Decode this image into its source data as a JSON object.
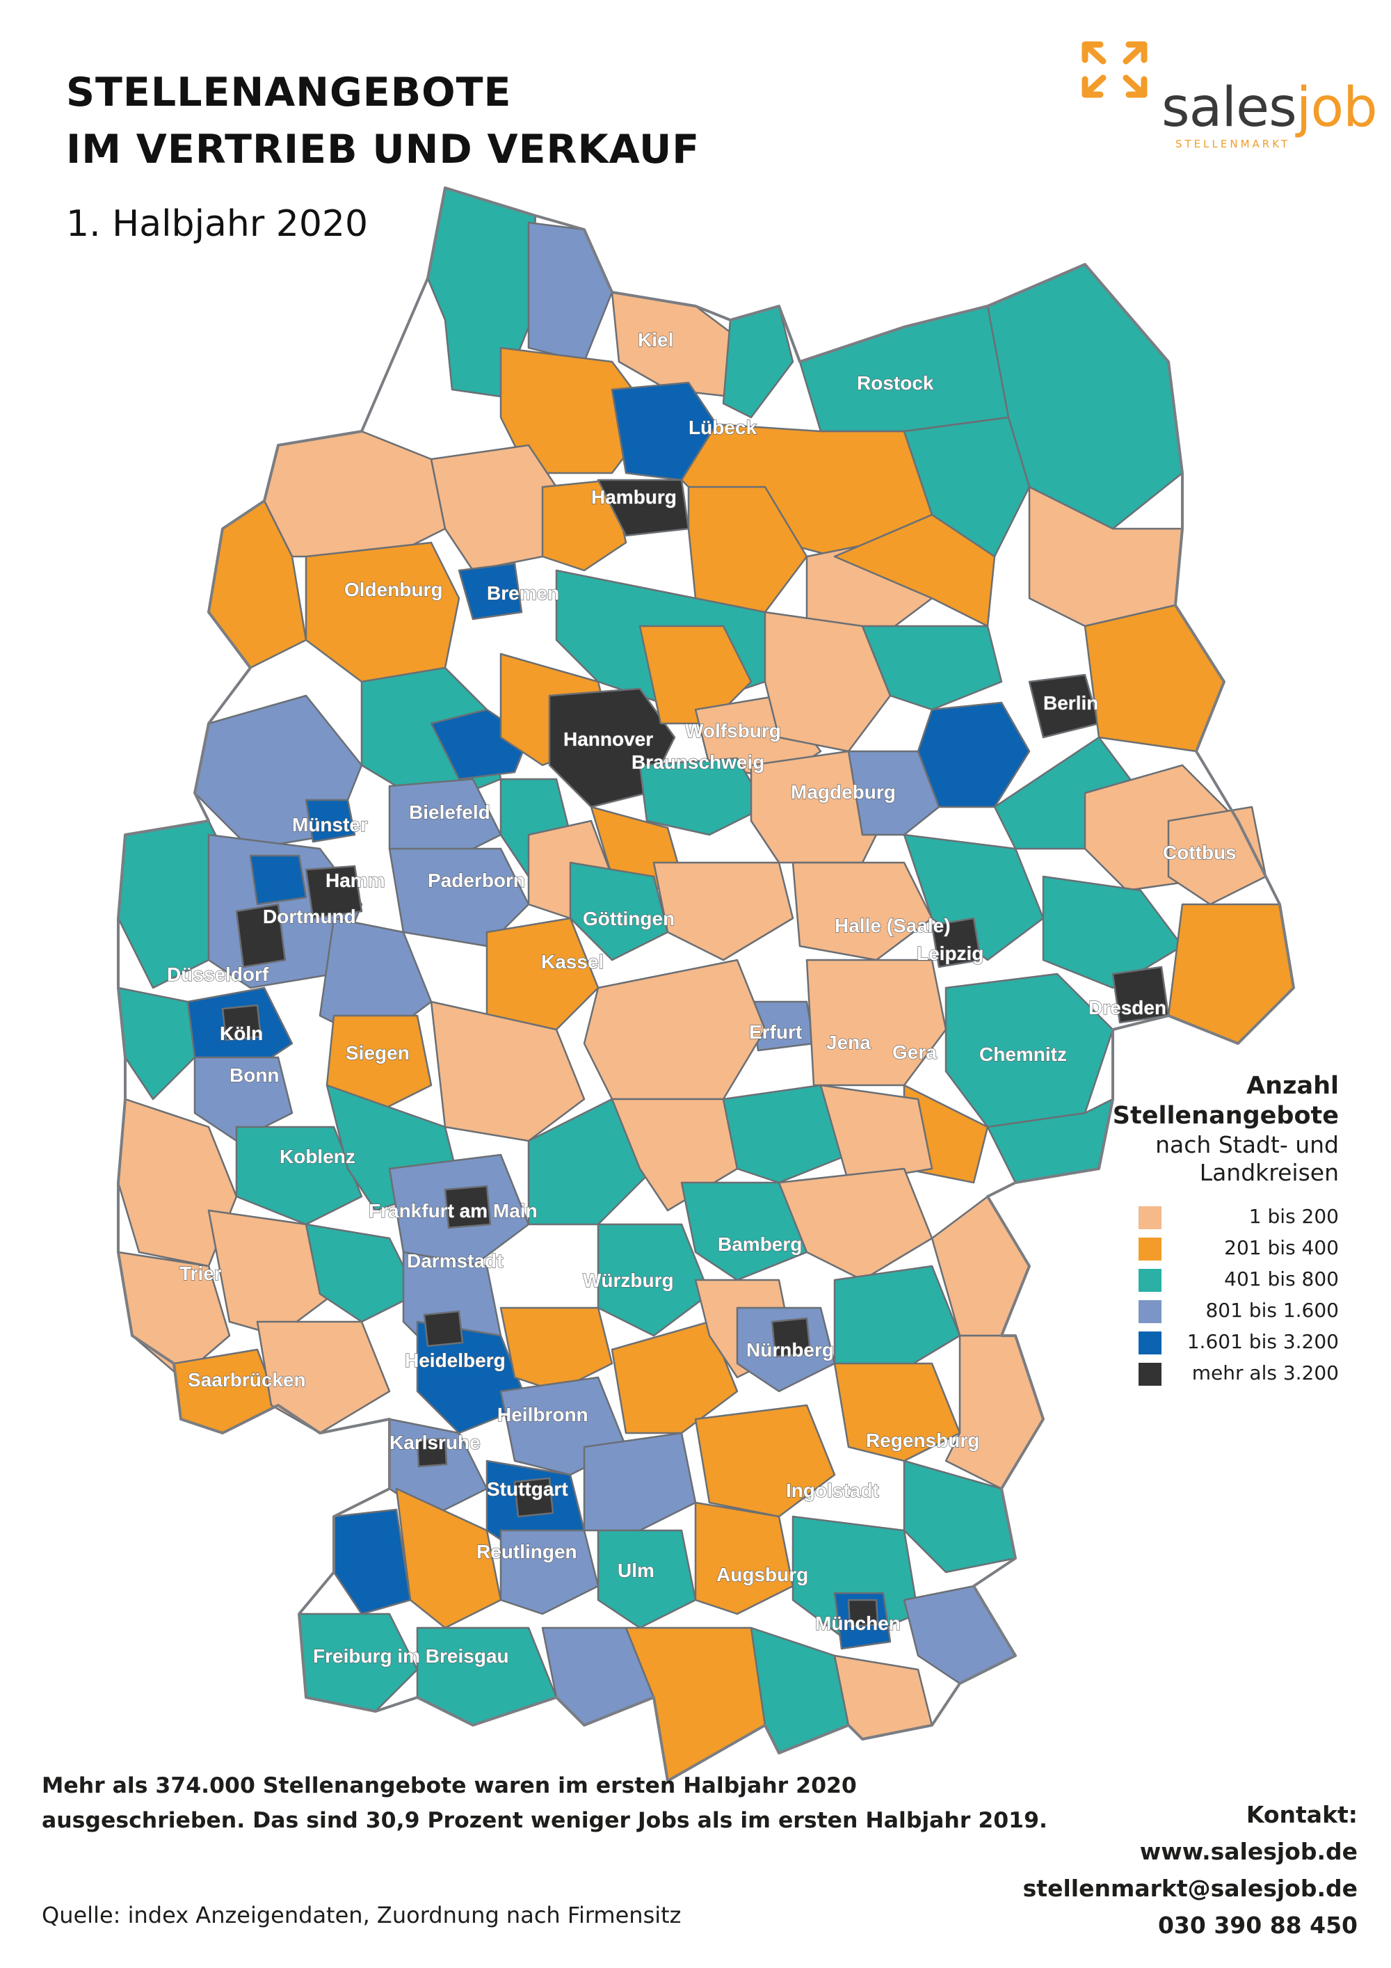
{
  "header": {
    "title_line1": "STELLENANGEBOTE",
    "title_line2": "IM VERTRIEB UND VERKAUF",
    "subtitle": "1. Halbjahr 2020"
  },
  "logo": {
    "word_part1": "sales",
    "word_part2": "job",
    "tagline": "STELLENMARKT",
    "brand_color": "#f39c29"
  },
  "legend": {
    "title_line1": "Anzahl",
    "title_line2": "Stellenangebote",
    "subtitle_line1": "nach Stadt- und",
    "subtitle_line2": "Landkreisen",
    "items": [
      {
        "label": "1 bis 200",
        "color": "#f5b98a"
      },
      {
        "label": "201 bis 400",
        "color": "#f39c29"
      },
      {
        "label": "401 bis 800",
        "color": "#2bb0a6"
      },
      {
        "label": "801 bis 1.600",
        "color": "#7b95c6"
      },
      {
        "label": "1.601 bis 3.200",
        "color": "#0b63b2"
      },
      {
        "label": "mehr als 3.200",
        "color": "#333333"
      }
    ]
  },
  "cities": {
    "kiel": "Kiel",
    "rostock": "Rostock",
    "luebeck": "Lübeck",
    "hamburg": "Hamburg",
    "oldenburg": "Oldenburg",
    "bremen": "Bremen",
    "berlin": "Berlin",
    "hannover": "Hannover",
    "wolfsburg": "Wolfsburg",
    "braunschweig": "Braunschweig",
    "magdeburg": "Magdeburg",
    "muenster": "Münster",
    "bielefeld": "Bielefeld",
    "hamm": "Hamm",
    "dortmund": "Dortmund",
    "paderborn": "Paderborn",
    "cottbus": "Cottbus",
    "goettingen": "Göttingen",
    "halle": "Halle (Saale)",
    "leipzig": "Leipzig",
    "duesseldorf": "Düsseldorf",
    "kassel": "Kassel",
    "dresden": "Dresden",
    "koeln": "Köln",
    "erfurt": "Erfurt",
    "jena": "Jena",
    "gera": "Gera",
    "chemnitz": "Chemnitz",
    "siegen": "Siegen",
    "bonn": "Bonn",
    "koblenz": "Koblenz",
    "frankfurt": "Frankfurt am Main",
    "darmstadt": "Darmstadt",
    "bamberg": "Bamberg",
    "trier": "Trier",
    "wuerzburg": "Würzburg",
    "nuernberg": "Nürnberg",
    "heidelberg": "Heidelberg",
    "saarbruecken": "Saarbrücken",
    "heilbronn": "Heilbronn",
    "karlsruhe": "Karlsruhe",
    "regensburg": "Regensburg",
    "stuttgart": "Stuttgart",
    "ingolstadt": "Ingolstadt",
    "reutlingen": "Reutlingen",
    "ulm": "Ulm",
    "augsburg": "Augsburg",
    "muenchen": "München",
    "freiburg": "Freiburg im Breisgau"
  },
  "footnote": {
    "line1": "Mehr als 374.000 Stellenangebote waren im ersten Halbjahr 2020",
    "line2": "ausgeschrieben. Das sind 30,9 Prozent weniger Jobs als im ersten Halbjahr 2019."
  },
  "source": "Quelle: index Anzeigendaten, Zuordnung nach Firmensitz",
  "contact": {
    "heading": "Kontakt:",
    "website": "www.salesjob.de",
    "email": "stellenmarkt@salesjob.de",
    "phone": "030 390 88 450"
  }
}
